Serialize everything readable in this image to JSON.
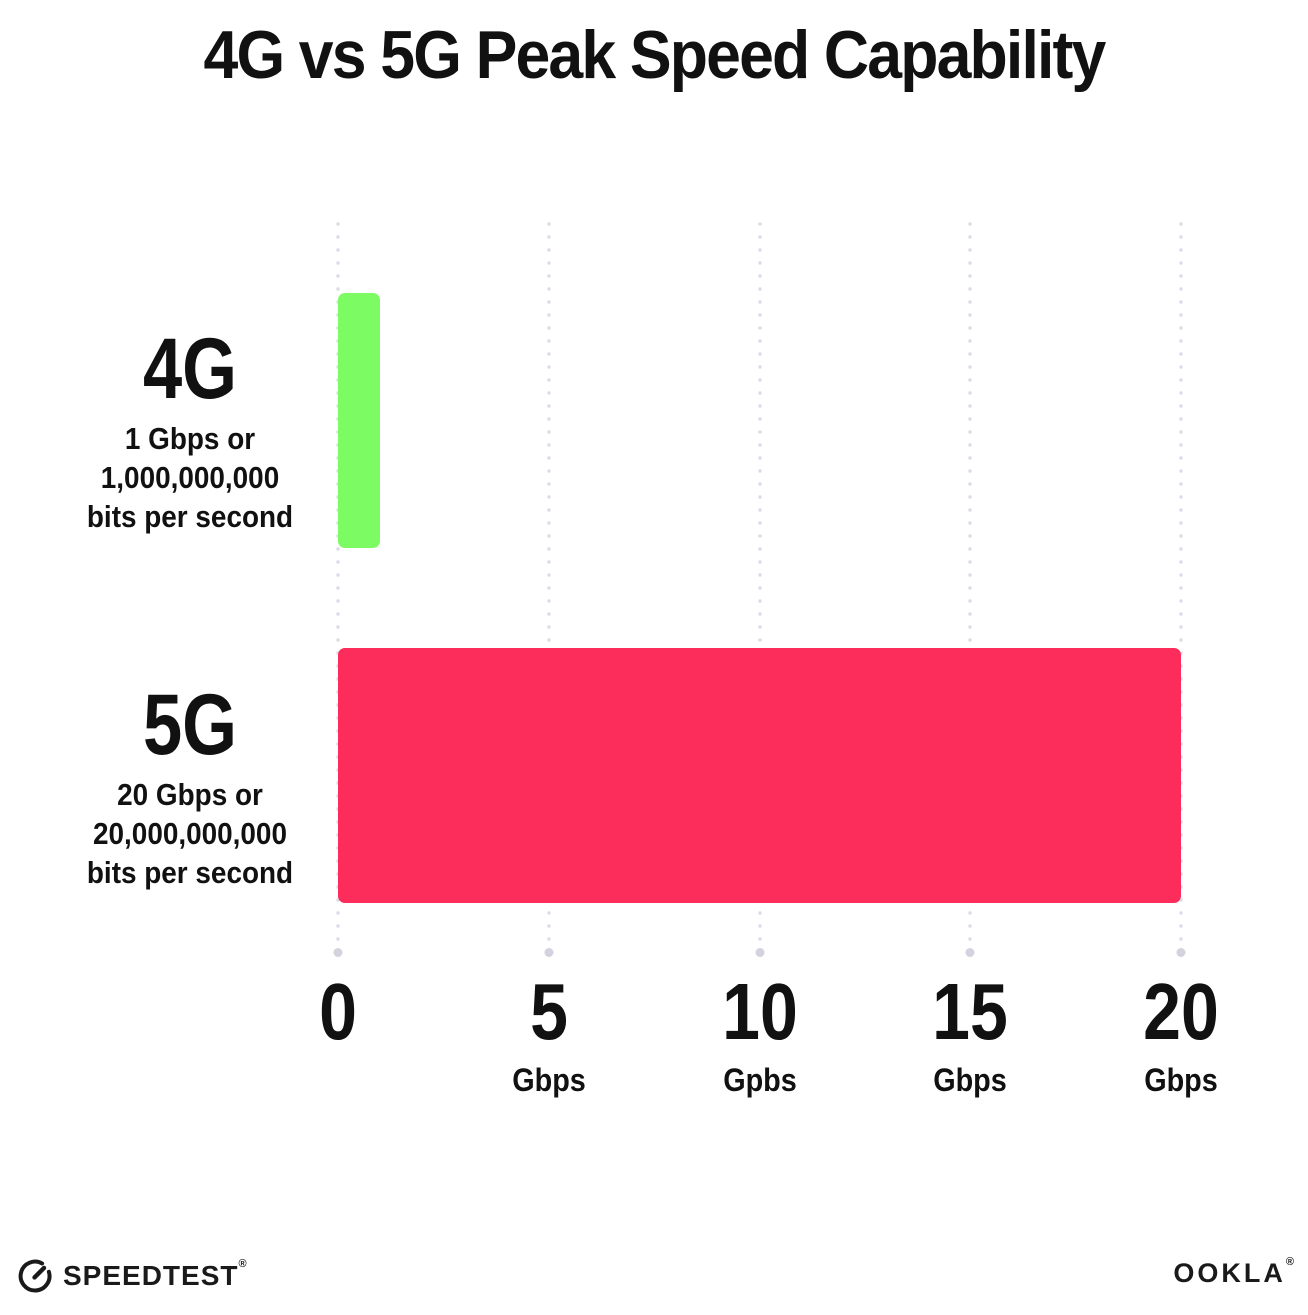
{
  "title": "4G vs 5G Peak Speed Capability",
  "chart_data": {
    "type": "bar",
    "orientation": "horizontal",
    "title": "4G vs 5G Peak Speed Capability",
    "categories": [
      "4G",
      "5G"
    ],
    "values": [
      1,
      20
    ],
    "value_unit": "Gbps",
    "series_colors": [
      "#7dfb63",
      "#fd2d5b"
    ],
    "xlim": [
      0,
      20
    ],
    "xticks": [
      0,
      5,
      10,
      15,
      20
    ],
    "xtick_labels": [
      "0",
      "5 Gbps",
      "10 Gpbs",
      "15 Gbps",
      "20 Gbps"
    ],
    "grid": "dotted-vertical",
    "legend": "none",
    "category_descriptions": [
      "1 Gbps or 1,000,000,000 bits per second",
      "20 Gbps or 20,000,000,000 bits per second"
    ]
  },
  "rows": [
    {
      "label": "4G",
      "desc_line1": "1 Gbps or",
      "desc_line2": "1,000,000,000",
      "desc_line3": "bits per second"
    },
    {
      "label": "5G",
      "desc_line1": "20 Gbps or",
      "desc_line2": "20,000,000,000",
      "desc_line3": "bits per second"
    }
  ],
  "axis": {
    "ticks": [
      {
        "number": "0",
        "unit": ""
      },
      {
        "number": "5",
        "unit": "Gbps"
      },
      {
        "number": "10",
        "unit": "Gpbs"
      },
      {
        "number": "15",
        "unit": "Gbps"
      },
      {
        "number": "20",
        "unit": "Gbps"
      }
    ]
  },
  "footer": {
    "speedtest_label": "SPEEDTEST",
    "speedtest_mark": "®",
    "ookla_label": "OOKLA",
    "ookla_mark": "®"
  },
  "colors": {
    "bar_4g": "#7dfb63",
    "bar_5g": "#fd2d5b",
    "grid_dot": "#dcdce8",
    "text": "#111111",
    "background": "#ffffff"
  }
}
